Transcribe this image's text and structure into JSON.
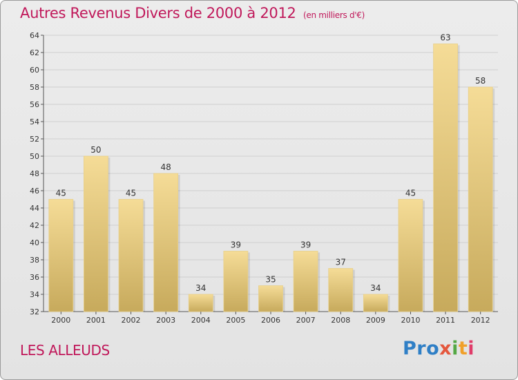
{
  "header": {
    "title": "Autres Revenus Divers de 2000 à 2012",
    "unit": "(en milliers d'€)"
  },
  "footer": {
    "place": "LES ALLEUDS",
    "logo": [
      "Pro",
      "x",
      "i",
      "t",
      "i"
    ]
  },
  "colors": {
    "accent": "#c0185a",
    "bar_top": "#f5dc97",
    "bar_bottom": "#c7aa5c",
    "grid": "#cfcfcf"
  },
  "chart_data": {
    "type": "bar",
    "categories": [
      "2000",
      "2001",
      "2002",
      "2003",
      "2004",
      "2005",
      "2006",
      "2007",
      "2008",
      "2009",
      "2010",
      "2011",
      "2012"
    ],
    "values": [
      45,
      50,
      45,
      48,
      34,
      39,
      35,
      39,
      37,
      34,
      45,
      63,
      58
    ],
    "ylim": [
      32,
      64
    ],
    "yticks": [
      32,
      34,
      36,
      38,
      40,
      42,
      44,
      46,
      48,
      50,
      52,
      54,
      56,
      58,
      60,
      62,
      64
    ],
    "grid": true,
    "xlabel": "",
    "ylabel": ""
  }
}
